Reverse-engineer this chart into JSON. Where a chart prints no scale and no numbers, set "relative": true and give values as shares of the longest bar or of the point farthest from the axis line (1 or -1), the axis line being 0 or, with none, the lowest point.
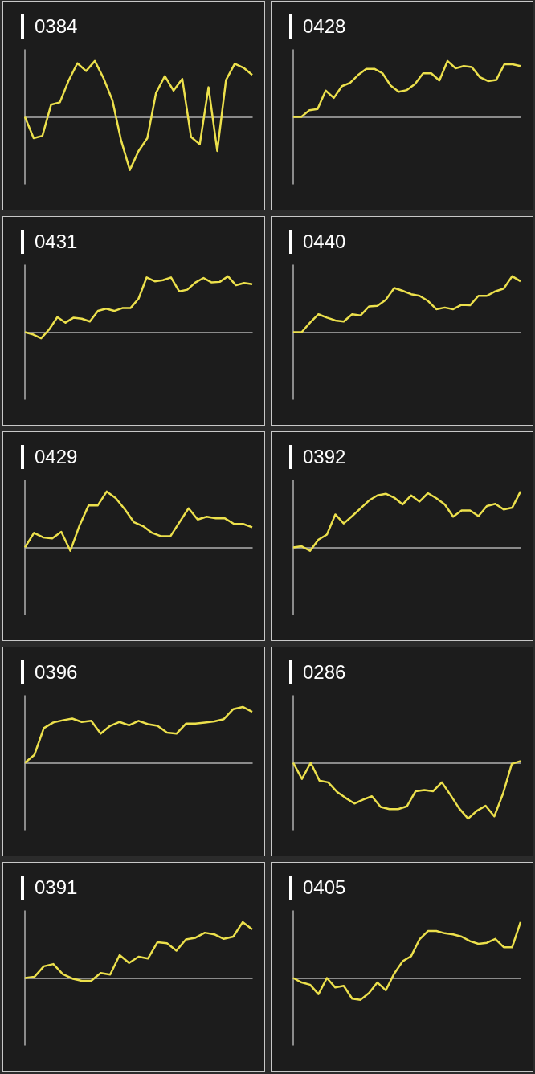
{
  "chart_data": [
    {
      "type": "line",
      "title": "0384",
      "relative": true,
      "categories": [
        null,
        null,
        null,
        null,
        null,
        null,
        null,
        null,
        null,
        null,
        null,
        null,
        null,
        null,
        null,
        null,
        null,
        null,
        null,
        null,
        null,
        null,
        null,
        null,
        null,
        null,
        null
      ],
      "series": [
        {
          "color": "#ece04c",
          "values": [
            0,
            -0.38,
            -0.34,
            0.22,
            0.26,
            0.65,
            0.96,
            0.82,
            1,
            0.69,
            0.3,
            -0.42,
            -0.95,
            -0.61,
            -0.38,
            0.43,
            0.73,
            0.47,
            0.68,
            -0.36,
            -0.49,
            0.53,
            -0.61,
            0.66,
            0.95,
            0.88,
            0.75
          ]
        }
      ]
    },
    {
      "type": "line",
      "title": "0428",
      "relative": true,
      "categories": [
        null,
        null,
        null,
        null,
        null,
        null,
        null,
        null,
        null,
        null,
        null,
        null,
        null,
        null,
        null,
        null,
        null,
        null,
        null,
        null,
        null,
        null,
        null,
        null,
        null,
        null,
        null,
        null,
        null
      ],
      "series": [
        {
          "color": "#ece04c",
          "values": [
            0,
            0,
            0.12,
            0.14,
            0.47,
            0.34,
            0.55,
            0.61,
            0.75,
            0.86,
            0.86,
            0.78,
            0.56,
            0.45,
            0.48,
            0.59,
            0.78,
            0.78,
            0.65,
            1,
            0.87,
            0.91,
            0.89,
            0.71,
            0.64,
            0.66,
            0.94,
            0.94,
            0.91
          ]
        }
      ]
    },
    {
      "type": "line",
      "title": "0431",
      "relative": true,
      "categories": [
        null,
        null,
        null,
        null,
        null,
        null,
        null,
        null,
        null,
        null,
        null,
        null,
        null,
        null,
        null,
        null,
        null,
        null,
        null,
        null,
        null,
        null,
        null,
        null,
        null,
        null,
        null,
        null,
        null
      ],
      "series": [
        {
          "color": "#ece04c",
          "values": [
            0,
            -0.04,
            -0.11,
            0.05,
            0.27,
            0.17,
            0.26,
            0.24,
            0.19,
            0.38,
            0.42,
            0.38,
            0.43,
            0.43,
            0.6,
            0.98,
            0.91,
            0.93,
            0.98,
            0.73,
            0.76,
            0.89,
            0.97,
            0.89,
            0.9,
            1,
            0.84,
            0.88,
            0.86
          ]
        }
      ]
    },
    {
      "type": "line",
      "title": "0440",
      "relative": true,
      "categories": [
        null,
        null,
        null,
        null,
        null,
        null,
        null,
        null,
        null,
        null,
        null,
        null,
        null,
        null,
        null,
        null,
        null,
        null,
        null,
        null,
        null,
        null,
        null,
        null,
        null,
        null,
        null,
        null
      ],
      "series": [
        {
          "color": "#ece04c",
          "values": [
            0,
            0,
            0.17,
            0.32,
            0.26,
            0.21,
            0.19,
            0.32,
            0.3,
            0.46,
            0.47,
            0.58,
            0.79,
            0.74,
            0.68,
            0.65,
            0.56,
            0.41,
            0.44,
            0.41,
            0.49,
            0.48,
            0.65,
            0.65,
            0.73,
            0.78,
            1,
            0.91
          ]
        }
      ]
    },
    {
      "type": "line",
      "title": "0429",
      "relative": true,
      "categories": [
        null,
        null,
        null,
        null,
        null,
        null,
        null,
        null,
        null,
        null,
        null,
        null,
        null,
        null,
        null,
        null,
        null,
        null,
        null,
        null,
        null,
        null,
        null,
        null,
        null,
        null
      ],
      "series": [
        {
          "color": "#ece04c",
          "values": [
            0,
            0.26,
            0.18,
            0.16,
            0.28,
            -0.06,
            0.39,
            0.75,
            0.75,
            1,
            0.88,
            0.68,
            0.45,
            0.38,
            0.26,
            0.2,
            0.2,
            0.45,
            0.7,
            0.5,
            0.55,
            0.52,
            0.52,
            0.42,
            0.42,
            0.36
          ]
        }
      ]
    },
    {
      "type": "line",
      "title": "0392",
      "relative": true,
      "categories": [
        null,
        null,
        null,
        null,
        null,
        null,
        null,
        null,
        null,
        null,
        null,
        null,
        null,
        null,
        null,
        null,
        null,
        null,
        null,
        null,
        null,
        null,
        null,
        null,
        null,
        null,
        null,
        null
      ],
      "series": [
        {
          "color": "#ece04c",
          "values": [
            0,
            0.02,
            -0.06,
            0.14,
            0.23,
            0.59,
            0.43,
            0.56,
            0.7,
            0.84,
            0.93,
            0.96,
            0.89,
            0.77,
            0.93,
            0.82,
            0.97,
            0.88,
            0.77,
            0.55,
            0.66,
            0.66,
            0.56,
            0.74,
            0.78,
            0.68,
            0.71,
            1
          ]
        }
      ]
    },
    {
      "type": "line",
      "title": "0396",
      "relative": true,
      "categories": [
        null,
        null,
        null,
        null,
        null,
        null,
        null,
        null,
        null,
        null,
        null,
        null,
        null,
        null,
        null,
        null,
        null,
        null,
        null,
        null,
        null,
        null,
        null,
        null,
        null
      ],
      "series": [
        {
          "color": "#ece04c",
          "values": [
            0,
            0.14,
            0.62,
            0.72,
            0.76,
            0.79,
            0.73,
            0.75,
            0.52,
            0.66,
            0.73,
            0.67,
            0.75,
            0.69,
            0.66,
            0.54,
            0.52,
            0.7,
            0.7,
            0.72,
            0.74,
            0.78,
            0.96,
            1,
            0.91
          ]
        }
      ]
    },
    {
      "type": "line",
      "title": "0286",
      "relative": true,
      "categories": [
        null,
        null,
        null,
        null,
        null,
        null,
        null,
        null,
        null,
        null,
        null,
        null,
        null,
        null,
        null,
        null,
        null,
        null,
        null,
        null,
        null,
        null,
        null,
        null,
        null,
        null,
        null
      ],
      "series": [
        {
          "color": "#ece04c",
          "values": [
            0,
            -0.29,
            0,
            -0.32,
            -0.35,
            -0.52,
            -0.63,
            -0.73,
            -0.66,
            -0.6,
            -0.79,
            -0.83,
            -0.83,
            -0.78,
            -0.51,
            -0.49,
            -0.51,
            -0.35,
            -0.58,
            -0.82,
            -1,
            -0.86,
            -0.77,
            -0.96,
            -0.55,
            -0.02,
            0.03
          ]
        }
      ]
    },
    {
      "type": "line",
      "title": "0391",
      "relative": true,
      "categories": [
        null,
        null,
        null,
        null,
        null,
        null,
        null,
        null,
        null,
        null,
        null,
        null,
        null,
        null,
        null,
        null,
        null,
        null,
        null,
        null,
        null,
        null,
        null,
        null,
        null
      ],
      "series": [
        {
          "color": "#ece04c",
          "values": [
            0,
            0.02,
            0.21,
            0.25,
            0.07,
            -0.01,
            -0.05,
            -0.05,
            0.09,
            0.06,
            0.41,
            0.27,
            0.38,
            0.35,
            0.64,
            0.62,
            0.49,
            0.69,
            0.72,
            0.81,
            0.78,
            0.7,
            0.74,
            1,
            0.87
          ]
        }
      ]
    },
    {
      "type": "line",
      "title": "0405",
      "relative": true,
      "categories": [
        null,
        null,
        null,
        null,
        null,
        null,
        null,
        null,
        null,
        null,
        null,
        null,
        null,
        null,
        null,
        null,
        null,
        null,
        null,
        null,
        null,
        null,
        null,
        null,
        null,
        null,
        null,
        null
      ],
      "series": [
        {
          "color": "#ece04c",
          "values": [
            0,
            -0.08,
            -0.12,
            -0.29,
            0,
            -0.17,
            -0.14,
            -0.37,
            -0.39,
            -0.27,
            -0.08,
            -0.22,
            0.08,
            0.3,
            0.39,
            0.69,
            0.84,
            0.84,
            0.8,
            0.78,
            0.74,
            0.66,
            0.61,
            0.63,
            0.7,
            0.55,
            0.55,
            1
          ]
        }
      ]
    }
  ]
}
